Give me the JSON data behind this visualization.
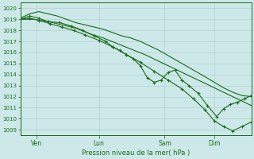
{
  "background_color": "#cce8e8",
  "grid_color": "#aacccc",
  "line_color": "#1a6b1a",
  "title": "Pression niveau de la mer( hPa )",
  "ylim": [
    1008.5,
    1020.5
  ],
  "yticks": [
    1009,
    1010,
    1011,
    1012,
    1013,
    1014,
    1015,
    1016,
    1017,
    1018,
    1019,
    1020
  ],
  "xtick_labels": [
    "Ven",
    "Lun",
    "Sam",
    "Dim"
  ],
  "xtick_positions": [
    0.07,
    0.34,
    0.625,
    0.84
  ],
  "line1_x": [
    0.0,
    0.06,
    0.12,
    0.18,
    0.24,
    0.3,
    0.36,
    0.42,
    0.48,
    0.54,
    0.6,
    0.66,
    0.72,
    0.78,
    0.84,
    0.9,
    0.96,
    1.0
  ],
  "line1_y": [
    1019.0,
    1019.0,
    1018.8,
    1018.5,
    1018.2,
    1017.7,
    1017.3,
    1016.8,
    1016.3,
    1015.8,
    1015.2,
    1014.6,
    1014.0,
    1013.4,
    1012.8,
    1012.2,
    1011.6,
    1011.2
  ],
  "line2_x": [
    0.0,
    0.04,
    0.08,
    0.12,
    0.16,
    0.2,
    0.24,
    0.28,
    0.32,
    0.36,
    0.4,
    0.44,
    0.48,
    0.52,
    0.56,
    0.6,
    0.65,
    0.7,
    0.75,
    0.8,
    0.84,
    0.88,
    0.92,
    0.96,
    1.0
  ],
  "line2_y": [
    1019.1,
    1019.5,
    1019.7,
    1019.5,
    1019.3,
    1019.0,
    1018.7,
    1018.5,
    1018.3,
    1018.1,
    1017.8,
    1017.5,
    1017.3,
    1017.0,
    1016.6,
    1016.2,
    1015.6,
    1015.0,
    1014.4,
    1013.8,
    1013.3,
    1012.8,
    1012.4,
    1012.1,
    1012.0
  ],
  "line3_x": [
    0.0,
    0.04,
    0.08,
    0.12,
    0.17,
    0.22,
    0.27,
    0.32,
    0.37,
    0.4,
    0.43,
    0.46,
    0.49,
    0.52,
    0.55,
    0.58,
    0.61,
    0.64,
    0.67,
    0.7,
    0.73,
    0.77,
    0.81,
    0.85,
    0.88,
    0.91,
    0.94,
    0.97,
    1.0
  ],
  "line3_y": [
    1019.0,
    1019.3,
    1019.1,
    1018.8,
    1018.7,
    1018.4,
    1018.0,
    1017.5,
    1017.0,
    1016.5,
    1016.2,
    1015.8,
    1015.4,
    1014.8,
    1013.7,
    1013.3,
    1013.5,
    1014.2,
    1014.4,
    1013.5,
    1013.0,
    1012.3,
    1011.2,
    1010.2,
    1010.9,
    1011.3,
    1011.5,
    1011.8,
    1012.1
  ],
  "line4_x": [
    0.0,
    0.04,
    0.08,
    0.13,
    0.18,
    0.23,
    0.28,
    0.34,
    0.4,
    0.46,
    0.52,
    0.58,
    0.64,
    0.7,
    0.75,
    0.8,
    0.84,
    0.88,
    0.92,
    0.96,
    1.0
  ],
  "line4_y": [
    1019.0,
    1019.1,
    1018.9,
    1018.6,
    1018.3,
    1018.0,
    1017.6,
    1017.1,
    1016.5,
    1015.8,
    1015.1,
    1014.3,
    1013.5,
    1012.7,
    1011.8,
    1010.8,
    1009.8,
    1009.3,
    1008.9,
    1009.3,
    1009.7
  ]
}
